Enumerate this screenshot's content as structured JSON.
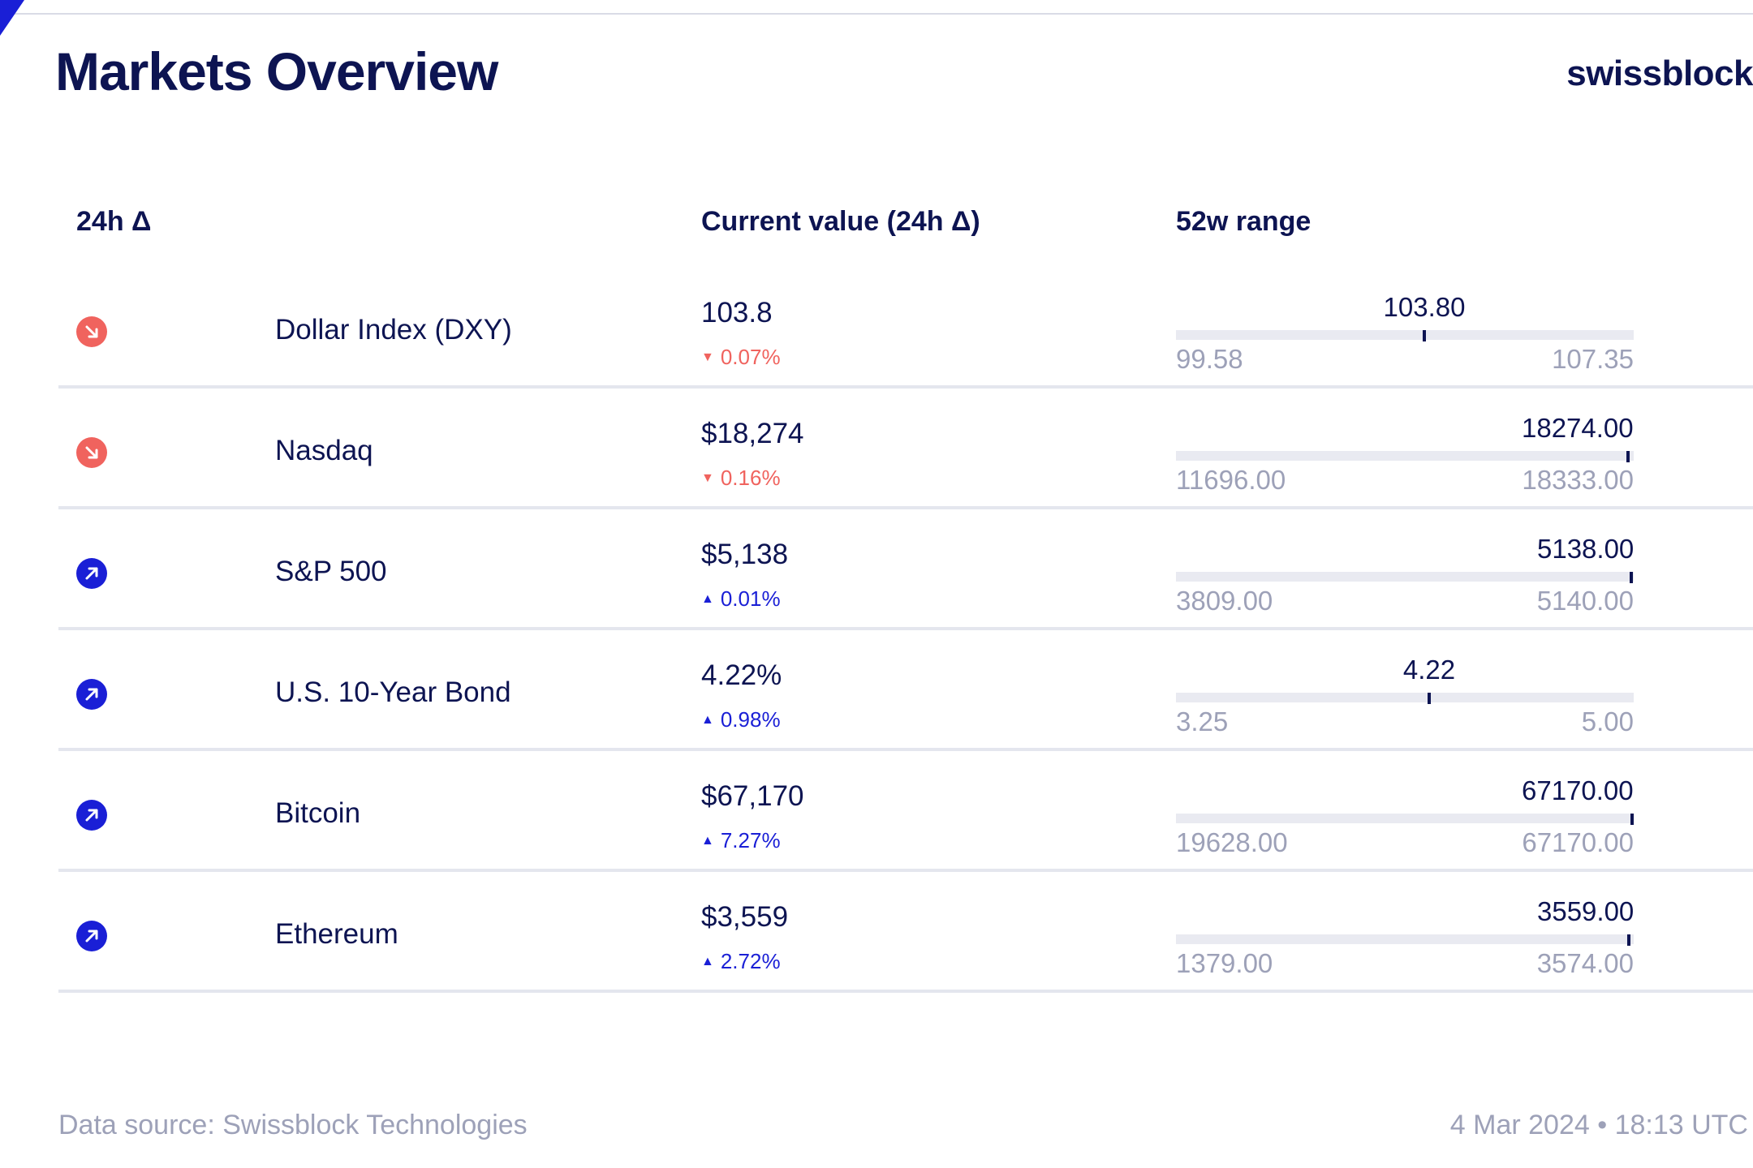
{
  "header": {
    "title": "Markets Overview",
    "brand": "swissblock"
  },
  "columns": {
    "delta": "24h Δ",
    "current": "Current value (24h Δ)",
    "range": "52w range"
  },
  "rows": [
    {
      "direction": "down",
      "icon": "arrow-down-right-icon",
      "name": "Dollar Index (DXY)",
      "value": "103.8",
      "change": "0.07%",
      "range_current": "103.80",
      "range_min": "99.58",
      "range_max": "107.35",
      "range_position": 0.543
    },
    {
      "direction": "down",
      "icon": "arrow-down-right-icon",
      "name": "Nasdaq",
      "value": "$18,274",
      "change": "0.16%",
      "range_current": "18274.00",
      "range_min": "11696.00",
      "range_max": "18333.00",
      "range_position": 0.991
    },
    {
      "direction": "up",
      "icon": "arrow-up-right-icon",
      "name": "S&P 500",
      "value": "$5,138",
      "change": "0.01%",
      "range_current": "5138.00",
      "range_min": "3809.00",
      "range_max": "5140.00",
      "range_position": 0.998
    },
    {
      "direction": "up",
      "icon": "arrow-up-right-icon",
      "name": "U.S. 10-Year Bond",
      "value": "4.22%",
      "change": "0.98%",
      "range_current": "4.22",
      "range_min": "3.25",
      "range_max": "5.00",
      "range_position": 0.554
    },
    {
      "direction": "up",
      "icon": "arrow-up-right-icon",
      "name": "Bitcoin",
      "value": "$67,170",
      "change": "7.27%",
      "range_current": "67170.00",
      "range_min": "19628.00",
      "range_max": "67170.00",
      "range_position": 1.0
    },
    {
      "direction": "up",
      "icon": "arrow-up-right-icon",
      "name": "Ethereum",
      "value": "$3,559",
      "change": "2.72%",
      "range_current": "3559.00",
      "range_min": "1379.00",
      "range_max": "3574.00",
      "range_position": 0.993
    }
  ],
  "footer": {
    "source": "Data source: Swissblock Technologies",
    "timestamp": "4 Mar 2024 • 18:13 UTC"
  },
  "colors": {
    "navy": "#0d1452",
    "up": "#1a1fd6",
    "down": "#f0635e",
    "muted": "#9da1b8",
    "track": "#e9eaf1"
  }
}
